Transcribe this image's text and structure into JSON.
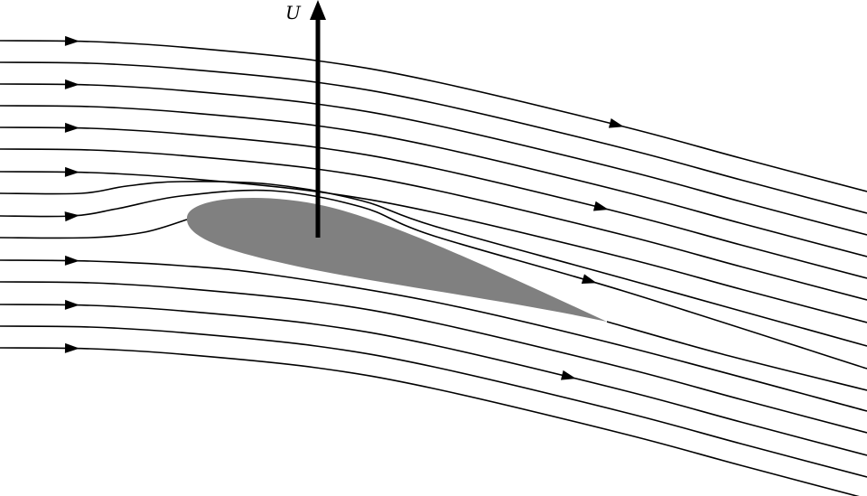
{
  "diagram": {
    "velocity_label": "U",
    "colors": {
      "airfoil": "#808080",
      "streamline": "#000000",
      "background": "#ffffff"
    },
    "streamline_count": 15
  }
}
